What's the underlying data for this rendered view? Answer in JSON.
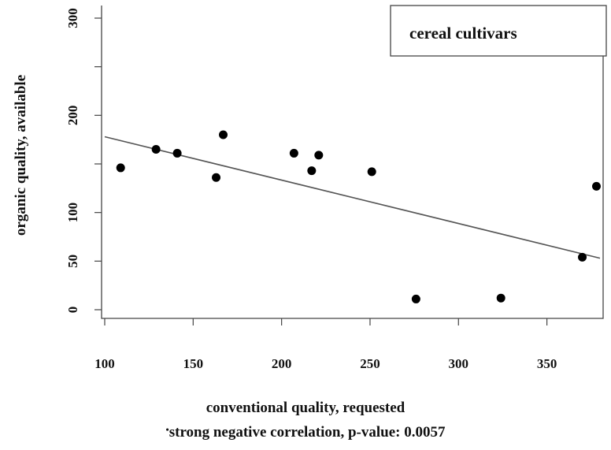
{
  "chart_data": {
    "type": "scatter",
    "title": "",
    "xlabel": "conventional quality, requested",
    "ylabel": "organic quality, available",
    "xlim": [
      100,
      380
    ],
    "ylim": [
      0,
      300
    ],
    "x_ticks": [
      100,
      150,
      200,
      250,
      300,
      350
    ],
    "y_ticks": [
      0,
      50,
      100,
      150,
      200,
      250,
      300
    ],
    "y_tick_labels": [
      "0",
      "50",
      "100",
      "",
      "200",
      "",
      "300"
    ],
    "grid": false,
    "legend": {
      "label": "cereal cultivars",
      "position": "top-right"
    },
    "series": [
      {
        "x": [
          109,
          129,
          141,
          163,
          167,
          207,
          217,
          221,
          251,
          276,
          324,
          370,
          378
        ],
        "y": [
          146,
          165,
          161,
          136,
          180,
          161,
          143,
          159,
          142,
          11,
          12,
          54,
          127
        ]
      }
    ],
    "trendline": {
      "x": [
        100,
        380
      ],
      "y": [
        178,
        53
      ]
    },
    "annotation": "strong negative correlation, p-value:  0.0057"
  }
}
